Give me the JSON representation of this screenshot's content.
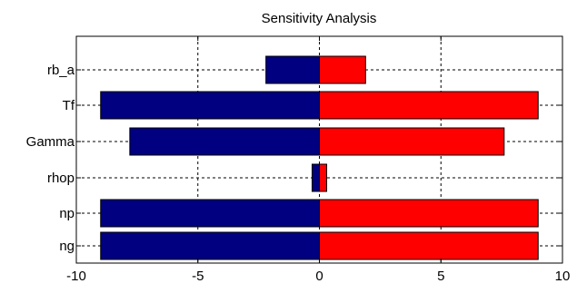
{
  "chart_data": {
    "type": "bar",
    "orientation": "horizontal",
    "title": "Sensitivity Analysis",
    "xlabel": "",
    "ylabel": "",
    "categories": [
      "rb_a",
      "Tf",
      "Gamma",
      "rhop",
      "np",
      "ng"
    ],
    "series": [
      {
        "values": [
          -2.2,
          -9.0,
          -7.8,
          -0.3,
          -9.0,
          -9.0
        ],
        "color": "#000080"
      },
      {
        "values": [
          1.9,
          9.0,
          7.6,
          0.3,
          9.0,
          9.0
        ],
        "color": "#ff0000"
      }
    ],
    "xlim": [
      -10,
      10
    ],
    "xticks": [
      -10,
      -5,
      0,
      5,
      10
    ],
    "xtick_labels": [
      "-10",
      "-5",
      "0",
      "5",
      "10"
    ],
    "grid": true,
    "grid_style": "dashed"
  }
}
